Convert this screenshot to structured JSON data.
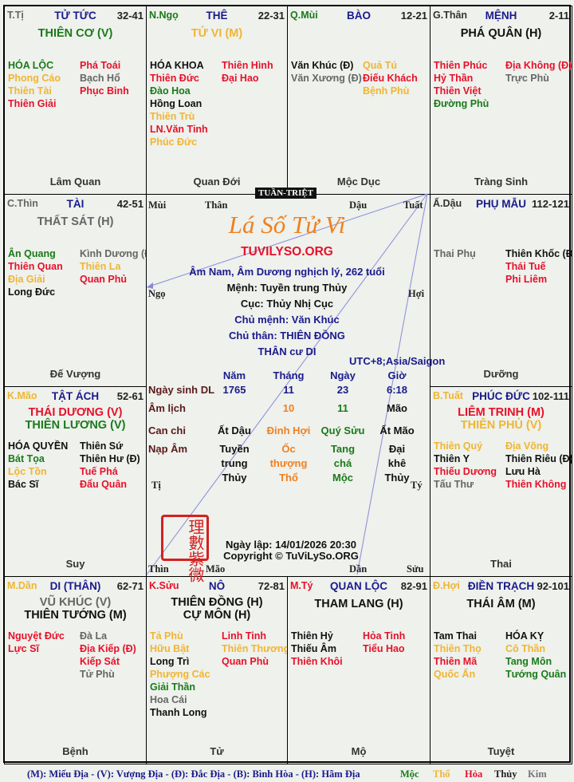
{
  "colors": {
    "green": "#1a7a1a",
    "yellow": "#f0b533",
    "red": "#e8102a",
    "black": "#111111",
    "gray": "#666666",
    "navy": "#1a1a8c",
    "orange": "#f08020"
  },
  "cells": [
    {
      "chi": "T.Tị",
      "chi_color": "#666666",
      "palace": "TỬ TỨC",
      "age": "32-41",
      "mains": [
        {
          "t": "THIÊN CƠ (V)",
          "c": "#1a7a1a"
        }
      ],
      "left": [
        {
          "t": "HÓA LỘC",
          "c": "#1a7a1a"
        },
        {
          "t": "Phong Cáo",
          "c": "#f0b533"
        },
        {
          "t": "Thiên Tài",
          "c": "#f0b533"
        },
        {
          "t": "Thiên Giải",
          "c": "#e8102a"
        }
      ],
      "right": [
        {
          "t": "Phá Toái",
          "c": "#e8102a"
        },
        {
          "t": "Bạch Hổ",
          "c": "#666666"
        },
        {
          "t": "Phục Binh",
          "c": "#e8102a"
        }
      ],
      "foot": "Lâm Quan"
    },
    {
      "chi": "N.Ngọ",
      "chi_color": "#1a7a1a",
      "palace": "THÊ",
      "age": "22-31",
      "mains": [
        {
          "t": "TỬ VI (M)",
          "c": "#f0b533"
        }
      ],
      "left": [
        {
          "t": "HÓA KHOA",
          "c": "#111111"
        },
        {
          "t": "Thiên Đức",
          "c": "#e8102a"
        },
        {
          "t": "Đào Hoa",
          "c": "#1a7a1a"
        },
        {
          "t": "Hồng Loan",
          "c": "#111111"
        },
        {
          "t": "Thiên Trù",
          "c": "#f0b533"
        },
        {
          "t": "LN.Văn Tinh",
          "c": "#e8102a"
        },
        {
          "t": "Phúc Đức",
          "c": "#f0b533"
        }
      ],
      "right": [
        {
          "t": "Thiên Hình",
          "c": "#e8102a"
        },
        {
          "t": "Đại Hao",
          "c": "#e8102a"
        }
      ],
      "foot": "Quan Đới"
    },
    {
      "chi": "Q.Mùi",
      "chi_color": "#1a7a1a",
      "palace": "BÀO",
      "age": "12-21",
      "mains": [],
      "left": [
        {
          "t": "Văn Khúc (Đ)",
          "c": "#111111"
        },
        {
          "t": "Văn Xương (Đ)",
          "c": "#666666"
        }
      ],
      "right": [
        {
          "t": "Quả Tú",
          "c": "#f0b533"
        },
        {
          "t": "Điếu Khách",
          "c": "#e8102a"
        },
        {
          "t": "Bệnh Phù",
          "c": "#f0b533"
        }
      ],
      "foot": "Mộc Dục"
    },
    {
      "chi": "G.Thân",
      "chi_color": "#333333",
      "palace": "MỆNH",
      "age": "2-11",
      "mains": [
        {
          "t": "PHÁ QUÂN (H)",
          "c": "#111111"
        }
      ],
      "left": [
        {
          "t": "Thiên Phúc",
          "c": "#e8102a"
        },
        {
          "t": "Hỷ Thần",
          "c": "#e8102a"
        },
        {
          "t": "Thiên Việt",
          "c": "#e8102a"
        },
        {
          "t": "Đường Phù",
          "c": "#1a7a1a"
        }
      ],
      "right": [
        {
          "t": "Địa Không (Đ)",
          "c": "#e8102a"
        },
        {
          "t": "Trực Phù",
          "c": "#666666"
        }
      ],
      "foot": "Tràng Sinh"
    },
    {
      "chi": "C.Thìn",
      "chi_color": "#666666",
      "palace": "TÀI",
      "age": "42-51",
      "mains": [
        {
          "t": "THẤT SÁT (H)",
          "c": "#666666"
        }
      ],
      "left": [
        {
          "t": "Ân Quang",
          "c": "#1a7a1a"
        },
        {
          "t": "Thiên Quan",
          "c": "#e8102a"
        },
        {
          "t": "Địa Giải",
          "c": "#f0b533"
        },
        {
          "t": "Long Đức",
          "c": "#111111"
        }
      ],
      "right": [
        {
          "t": "Kình Dương (Đ)",
          "c": "#666666"
        },
        {
          "t": "Thiên La",
          "c": "#f0b533"
        },
        {
          "t": "Quan Phủ",
          "c": "#e8102a"
        }
      ],
      "foot": "Đế Vượng"
    },
    {
      "chi": "Ấ.Dậu",
      "chi_color": "#333333",
      "palace": "PHỤ MẪU",
      "age": "112-121",
      "mains": [],
      "left": [
        {
          "t": "Thai Phụ",
          "c": "#666666"
        }
      ],
      "right": [
        {
          "t": "Thiên Khốc (Đ)",
          "c": "#111111"
        },
        {
          "t": "Thái Tuế",
          "c": "#e8102a"
        },
        {
          "t": "Phi Liêm",
          "c": "#e8102a"
        }
      ],
      "foot": "Dưỡng"
    },
    {
      "chi": "K.Mão",
      "chi_color": "#f0b533",
      "palace": "TẬT ÁCH",
      "age": "52-61",
      "mains": [
        {
          "t": "THÁI DƯƠNG (V)",
          "c": "#e8102a"
        },
        {
          "t": "THIÊN LƯƠNG (V)",
          "c": "#1a7a1a"
        }
      ],
      "left": [
        {
          "t": "HÓA QUYỀN",
          "c": "#111111"
        },
        {
          "t": "Bát Tọa",
          "c": "#1a7a1a"
        },
        {
          "t": "Lộc Tồn",
          "c": "#f0b533"
        },
        {
          "t": "Bác Sĩ",
          "c": "#111111"
        }
      ],
      "right": [
        {
          "t": "Thiên Sứ",
          "c": "#111111"
        },
        {
          "t": "Thiên Hư (Đ)",
          "c": "#111111"
        },
        {
          "t": "Tuế Phá",
          "c": "#e8102a"
        },
        {
          "t": "Đẩu Quân",
          "c": "#e8102a"
        }
      ],
      "foot": "Suy"
    },
    {
      "chi": "B.Tuất",
      "chi_color": "#f0b533",
      "palace": "PHÚC ĐỨC",
      "age": "102-111",
      "mains": [
        {
          "t": "LIÊM TRINH (M)",
          "c": "#e8102a"
        },
        {
          "t": "THIÊN PHỦ (V)",
          "c": "#f0b533"
        }
      ],
      "left": [
        {
          "t": "Thiên Quý",
          "c": "#f0b533"
        },
        {
          "t": "Thiên Y",
          "c": "#111111"
        },
        {
          "t": "Thiếu Dương",
          "c": "#e8102a"
        },
        {
          "t": "Tấu Thư",
          "c": "#666666"
        }
      ],
      "right": [
        {
          "t": "Địa Võng",
          "c": "#f0b533"
        },
        {
          "t": "Thiên Riêu (Đ)",
          "c": "#111111"
        },
        {
          "t": "Lưu Hà",
          "c": "#111111"
        },
        {
          "t": "Thiên Không",
          "c": "#e8102a"
        }
      ],
      "foot": "Thai"
    },
    {
      "chi": "M.Dần",
      "chi_color": "#f0b533",
      "palace": "DI (THÂN)",
      "age": "62-71",
      "mains": [
        {
          "t": "VŨ KHÚC (V)",
          "c": "#666666"
        },
        {
          "t": "THIÊN TƯỚNG (M)",
          "c": "#111111"
        }
      ],
      "left": [
        {
          "t": "Nguyệt Đức",
          "c": "#e8102a"
        },
        {
          "t": "Lực Sĩ",
          "c": "#e8102a"
        }
      ],
      "right": [
        {
          "t": "Đà La",
          "c": "#666666"
        },
        {
          "t": "Địa Kiếp (Đ)",
          "c": "#e8102a"
        },
        {
          "t": "Kiếp Sát",
          "c": "#e8102a"
        },
        {
          "t": "Tử Phù",
          "c": "#666666"
        }
      ],
      "foot": "Bệnh"
    },
    {
      "chi": "K.Sửu",
      "chi_color": "#e8102a",
      "palace": "NÔ",
      "age": "72-81",
      "mains": [
        {
          "t": "THIÊN ĐỒNG (H)",
          "c": "#111111"
        },
        {
          "t": "CỰ MÔN (H)",
          "c": "#111111"
        }
      ],
      "left": [
        {
          "t": "Tả Phù",
          "c": "#f0b533"
        },
        {
          "t": "Hữu Bật",
          "c": "#f0b533"
        },
        {
          "t": "Long Trì",
          "c": "#111111"
        },
        {
          "t": "Phượng Các",
          "c": "#f0b533"
        },
        {
          "t": "Giải Thần",
          "c": "#1a7a1a"
        },
        {
          "t": "Hoa Cái",
          "c": "#666666"
        },
        {
          "t": "Thanh Long",
          "c": "#111111"
        }
      ],
      "right": [
        {
          "t": "Linh Tinh",
          "c": "#e8102a"
        },
        {
          "t": "Thiên Thương",
          "c": "#f0b533"
        },
        {
          "t": "Quan Phù",
          "c": "#e8102a"
        }
      ],
      "foot": "Tử"
    },
    {
      "chi": "M.Tý",
      "chi_color": "#e8102a",
      "palace": "QUAN LỘC",
      "age": "82-91",
      "mains": [
        {
          "t": "THAM LANG (H)",
          "c": "#111111"
        }
      ],
      "left": [
        {
          "t": "Thiên Hỷ",
          "c": "#111111"
        },
        {
          "t": "Thiếu Âm",
          "c": "#111111"
        },
        {
          "t": "Thiên Khôi",
          "c": "#e8102a"
        }
      ],
      "right": [
        {
          "t": "Hỏa Tinh",
          "c": "#e8102a"
        },
        {
          "t": "Tiểu Hao",
          "c": "#e8102a"
        }
      ],
      "foot": "Mộ"
    },
    {
      "chi": "Đ.Hợi",
      "chi_color": "#f0b533",
      "palace": "ĐIỀN TRẠCH",
      "age": "92-101",
      "mains": [
        {
          "t": "THÁI ÂM (M)",
          "c": "#111111"
        }
      ],
      "left": [
        {
          "t": "Tam Thai",
          "c": "#111111"
        },
        {
          "t": "Thiên Thọ",
          "c": "#f0b533"
        },
        {
          "t": "Thiên Mã",
          "c": "#e8102a"
        },
        {
          "t": "Quốc Ấn",
          "c": "#f0b533"
        }
      ],
      "right": [
        {
          "t": "HÓA KỴ",
          "c": "#111111"
        },
        {
          "t": "Cô Thần",
          "c": "#f0b533"
        },
        {
          "t": "Tang Môn",
          "c": "#1a7a1a"
        },
        {
          "t": "Tướng Quân",
          "c": "#1a7a1a"
        }
      ],
      "foot": "Tuyệt"
    }
  ],
  "center": {
    "badge": "TUẦN-TRIỆT",
    "branches": {
      "mui": "Mùi",
      "than": "Thân",
      "dau": "Dậu",
      "tuat": "Tuất",
      "ngo": "Ngọ",
      "hoi": "Hợi",
      "ti": "Tị",
      "ty": "Tý",
      "thin": "Thìn",
      "mao": "Mão",
      "dan": "Dần",
      "suu": "Sửu"
    },
    "logo": "Lá Số Tử Vi",
    "site": "TUVILYSO.ORG",
    "gender": "Âm Nam, Âm Dương nghịch lý, 262 tuổi",
    "menh": "Mệnh: Tuyền trung Thủy",
    "cuc": "Cục: Thủy Nhị Cục",
    "chu_menh": "Chủ mệnh:  Văn Khúc",
    "chu_than": "Chủ thân:  THIÊN ĐỒNG",
    "than_cu": "THÂN cư DI",
    "tz": "UTC+8;Asia/Saigon",
    "table": {
      "headers": [
        "Năm",
        "Tháng",
        "Ngày",
        "Giờ"
      ],
      "duong_label": "Ngày sinh DL",
      "duong": [
        "1765",
        "11",
        "23",
        "6:18"
      ],
      "am_label": "Âm lịch",
      "am": [
        "",
        "10",
        "11",
        "Mão"
      ],
      "canchi_label": "Can chi",
      "canchi": [
        "Ất Dậu",
        "Đinh Hợi",
        "Quý Sửu",
        "Ất Mão"
      ],
      "napam_label": "Nạp Âm",
      "napam": [
        [
          "Tuyền",
          "trung",
          "Thủy"
        ],
        [
          "Ốc",
          "thượng",
          "Thổ"
        ],
        [
          "Tang",
          "chá",
          "Mộc"
        ],
        [
          "Đại",
          "khê",
          "Thủy"
        ]
      ]
    },
    "seal": "理數紫微",
    "created": "Ngày lập: 14/01/2026 20:30",
    "copyright": "Copyright © TuViLySo.ORG"
  },
  "legend": {
    "text": "(M): Miếu Địa - (V): Vượng Địa - (Đ): Đắc Địa - (B): Bình Hòa - (H): Hãm Địa",
    "elements": [
      {
        "t": "Mộc",
        "c": "#1a7a1a"
      },
      {
        "t": "Thổ",
        "c": "#f0b533"
      },
      {
        "t": "Hỏa",
        "c": "#e8102a"
      },
      {
        "t": "Thủy",
        "c": "#222222"
      },
      {
        "t": "Kim",
        "c": "#777777"
      }
    ]
  }
}
